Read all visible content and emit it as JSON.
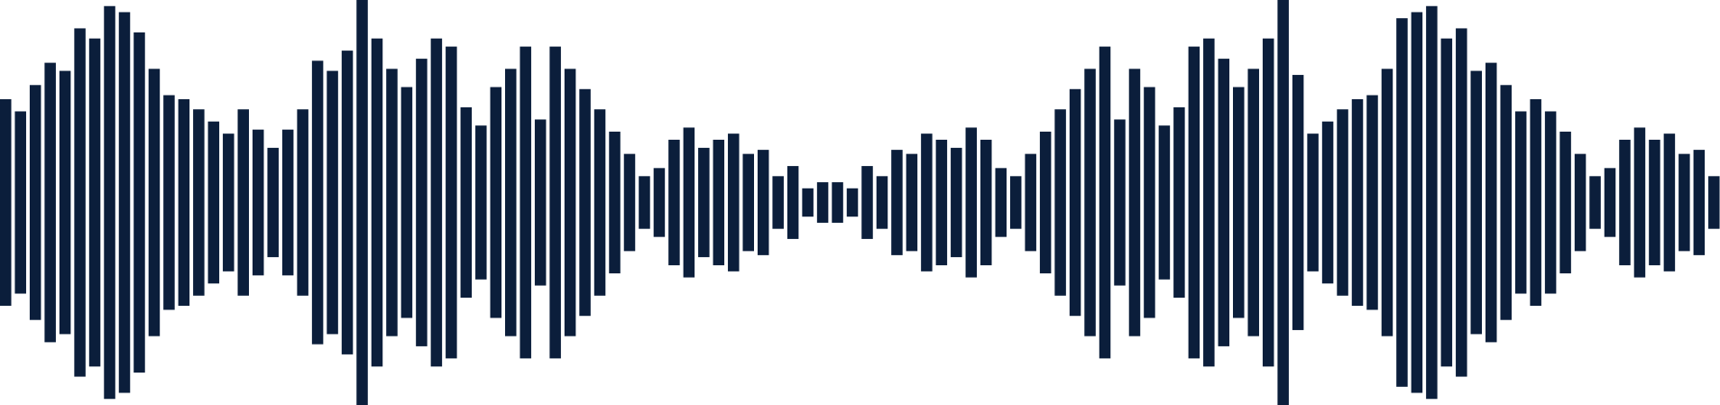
{
  "colors": {
    "bar": "#0b1e3b",
    "background": "#ffffff"
  },
  "waveform": {
    "levels": [
      0.51,
      0.45,
      0.58,
      0.69,
      0.65,
      0.86,
      0.81,
      0.97,
      0.94,
      0.84,
      0.66,
      0.53,
      0.51,
      0.46,
      0.4,
      0.34,
      0.46,
      0.36,
      0.27,
      0.36,
      0.46,
      0.7,
      0.65,
      0.75,
      1.0,
      0.81,
      0.66,
      0.57,
      0.71,
      0.81,
      0.77,
      0.47,
      0.38,
      0.57,
      0.66,
      0.77,
      0.41,
      0.77,
      0.66,
      0.56,
      0.46,
      0.35,
      0.24,
      0.13,
      0.17,
      0.31,
      0.37,
      0.27,
      0.31,
      0.34,
      0.24,
      0.26,
      0.13,
      0.18,
      0.07,
      0.1,
      0.1,
      0.07,
      0.18,
      0.13,
      0.26,
      0.24,
      0.34,
      0.31,
      0.27,
      0.37,
      0.31,
      0.17,
      0.13,
      0.24,
      0.35,
      0.46,
      0.56,
      0.66,
      0.77,
      0.41,
      0.66,
      0.57,
      0.38,
      0.47,
      0.77,
      0.81,
      0.71,
      0.57,
      0.66,
      0.81,
      1.0,
      0.63,
      0.34,
      0.4,
      0.46,
      0.51,
      0.53,
      0.66,
      0.91,
      0.94,
      0.97,
      0.81,
      0.86,
      0.65,
      0.69,
      0.58,
      0.45,
      0.51,
      0.45,
      0.35,
      0.24,
      0.13,
      0.17,
      0.31,
      0.37,
      0.31,
      0.34,
      0.24,
      0.26,
      0.13,
      0.18
    ]
  }
}
